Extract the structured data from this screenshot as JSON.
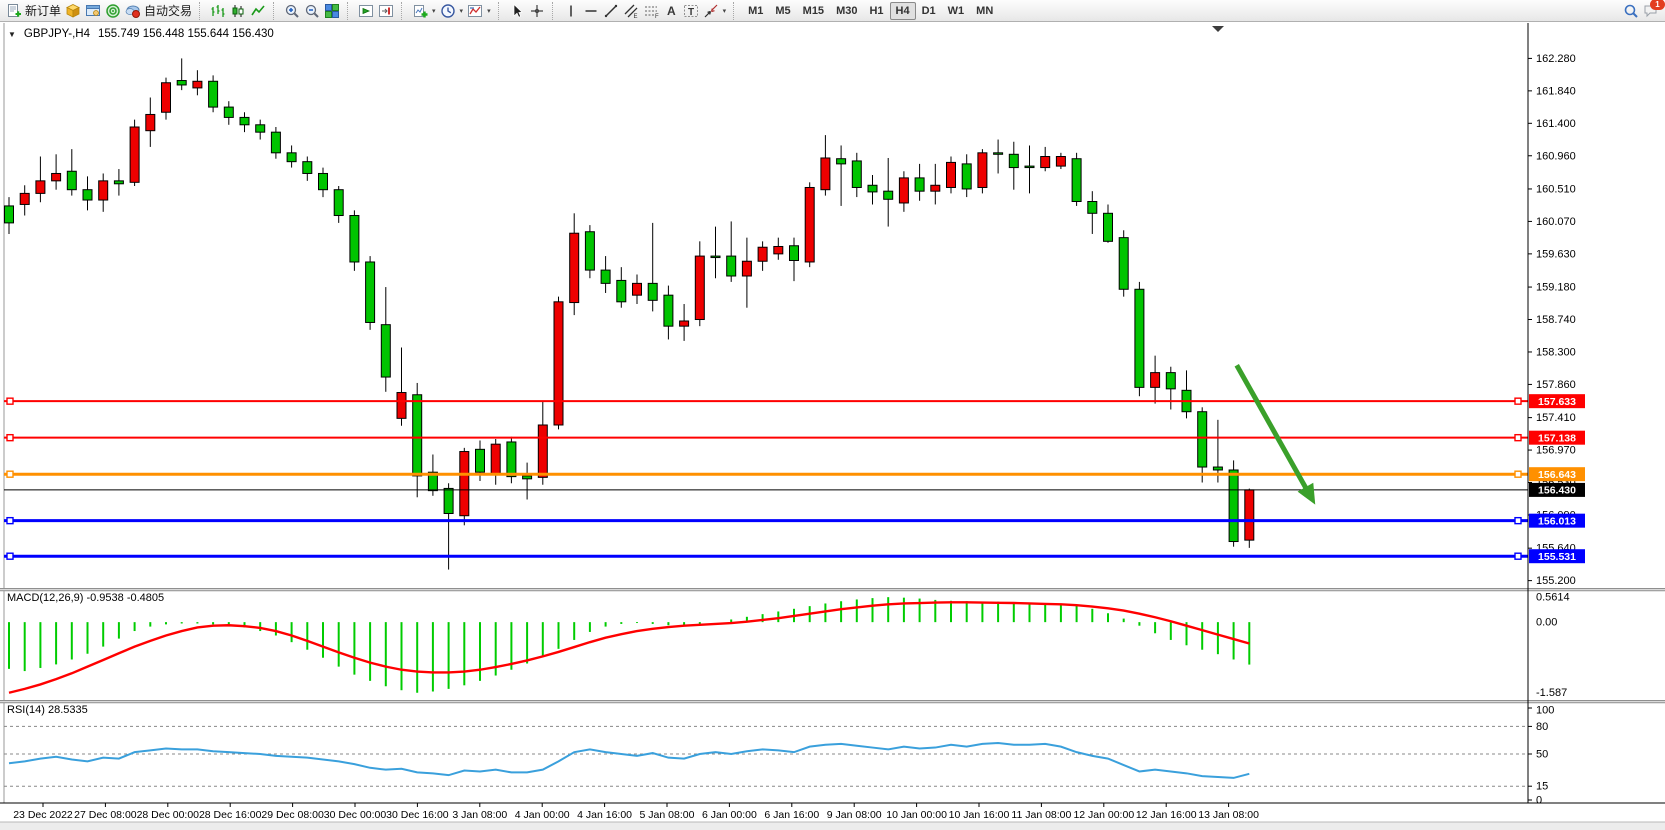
{
  "toolbar": {
    "groups": [
      {
        "name": "trade",
        "buttons": [
          {
            "icon": "new-order-icon",
            "label": "新订单"
          },
          {
            "icon": "cube-icon"
          },
          {
            "icon": "market-watch-icon"
          },
          {
            "icon": "navigator-icon"
          },
          {
            "icon": "autotrading-icon",
            "label": "自动交易"
          }
        ]
      },
      {
        "name": "chart-type",
        "buttons": [
          {
            "icon": "bar-chart-icon"
          },
          {
            "icon": "candlestick-icon"
          },
          {
            "icon": "line-chart-icon"
          }
        ]
      },
      {
        "name": "zoom",
        "buttons": [
          {
            "icon": "zoom-in-icon"
          },
          {
            "icon": "zoom-out-icon"
          },
          {
            "icon": "tile-windows-icon"
          }
        ]
      },
      {
        "name": "arrange",
        "buttons": [
          {
            "icon": "arrange-charts-icon"
          },
          {
            "icon": "arrange-shift-icon"
          }
        ]
      },
      {
        "name": "objects",
        "buttons": [
          {
            "icon": "add-indicator-icon",
            "dropdown": true
          },
          {
            "icon": "period-clock-icon",
            "dropdown": true
          },
          {
            "icon": "template-icon",
            "dropdown": true
          }
        ]
      },
      {
        "name": "pointer",
        "buttons": [
          {
            "icon": "cursor-icon"
          },
          {
            "icon": "crosshair-icon"
          }
        ]
      },
      {
        "name": "draw",
        "buttons": [
          {
            "icon": "vertical-line-icon"
          },
          {
            "icon": "horizontal-line-icon"
          },
          {
            "icon": "trendline-icon"
          },
          {
            "icon": "channel-icon"
          },
          {
            "icon": "fibonacci-icon"
          },
          {
            "icon": "text-icon"
          },
          {
            "icon": "text-label-icon"
          },
          {
            "icon": "arrows-icon",
            "dropdown": true
          }
        ]
      }
    ],
    "timeframes": [
      "M1",
      "M5",
      "M15",
      "M30",
      "H1",
      "H4",
      "D1",
      "W1",
      "MN"
    ],
    "active_timeframe": "H4",
    "chat_badge": "1"
  },
  "chart": {
    "symbol_period": "GBPJPY-,H4",
    "ohlc_text": "155.749 156.448 155.644 156.430",
    "macd_label": "MACD(12,26,9) -0.9538 -0.4805",
    "rsi_label": "RSI(14) 28.5335"
  },
  "chart_data": {
    "type": "candlestick",
    "symbol": "GBPJPY-",
    "period": "H4",
    "current_bar": {
      "open": 155.749,
      "high": 156.448,
      "low": 155.644,
      "close": 156.43
    },
    "colors": {
      "up_candle": "#ee0000",
      "down_candle": "#00c400",
      "candle_border": "#000000",
      "macd_histogram": "#00cc00",
      "macd_signal": "#ff0000",
      "rsi_line": "#3aa0dc",
      "arrow": "#3aa02a"
    },
    "price_axis": {
      "ymax": 162.76,
      "ymin": 155.1,
      "ticks": [
        162.28,
        161.84,
        161.4,
        160.96,
        160.51,
        160.07,
        159.63,
        159.18,
        158.74,
        158.3,
        157.86,
        157.41,
        156.97,
        156.53,
        156.09,
        155.64,
        155.2
      ]
    },
    "time_axis": {
      "labels": [
        "23 Dec 2022",
        "27 Dec 08:00",
        "28 Dec 00:00",
        "28 Dec 16:00",
        "29 Dec 08:00",
        "30 Dec 00:00",
        "30 Dec 16:00",
        "3 Jan 08:00",
        "4 Jan 00:00",
        "4 Jan 16:00",
        "5 Jan 08:00",
        "6 Jan 00:00",
        "6 Jan 16:00",
        "9 Jan 08:00",
        "10 Jan 00:00",
        "10 Jan 16:00",
        "11 Jan 08:00",
        "12 Jan 00:00",
        "12 Jan 16:00",
        "13 Jan 08:00"
      ]
    },
    "candles": [
      [
        160.28,
        160.4,
        159.9,
        160.05
      ],
      [
        160.3,
        160.56,
        160.15,
        160.45
      ],
      [
        160.45,
        160.95,
        160.33,
        160.62
      ],
      [
        160.62,
        160.98,
        160.5,
        160.72
      ],
      [
        160.75,
        161.05,
        160.42,
        160.5
      ],
      [
        160.5,
        160.68,
        160.22,
        160.36
      ],
      [
        160.36,
        160.72,
        160.2,
        160.62
      ],
      [
        160.62,
        160.78,
        160.42,
        160.58
      ],
      [
        160.6,
        161.45,
        160.55,
        161.35
      ],
      [
        161.3,
        161.75,
        161.08,
        161.52
      ],
      [
        161.55,
        162.02,
        161.45,
        161.95
      ],
      [
        161.98,
        162.28,
        161.85,
        161.92
      ],
      [
        161.88,
        162.12,
        161.78,
        161.97
      ],
      [
        161.97,
        162.05,
        161.55,
        161.62
      ],
      [
        161.62,
        161.7,
        161.38,
        161.48
      ],
      [
        161.48,
        161.55,
        161.28,
        161.38
      ],
      [
        161.38,
        161.45,
        161.18,
        161.28
      ],
      [
        161.28,
        161.35,
        160.92,
        161.0
      ],
      [
        161.0,
        161.1,
        160.8,
        160.88
      ],
      [
        160.88,
        160.95,
        160.62,
        160.72
      ],
      [
        160.72,
        160.8,
        160.4,
        160.5
      ],
      [
        160.5,
        160.55,
        160.05,
        160.15
      ],
      [
        160.15,
        160.22,
        159.4,
        159.52
      ],
      [
        159.52,
        159.6,
        158.6,
        158.7
      ],
      [
        158.67,
        159.18,
        157.76,
        157.96
      ],
      [
        157.4,
        158.36,
        157.3,
        157.75
      ],
      [
        157.72,
        157.88,
        156.33,
        156.62
      ],
      [
        156.67,
        156.91,
        156.35,
        156.42
      ],
      [
        156.45,
        156.52,
        155.35,
        156.11
      ],
      [
        156.08,
        157.0,
        155.95,
        156.95
      ],
      [
        156.98,
        157.1,
        156.55,
        156.67
      ],
      [
        156.64,
        157.12,
        156.5,
        157.05
      ],
      [
        157.08,
        157.15,
        156.52,
        156.61
      ],
      [
        156.62,
        156.8,
        156.3,
        156.58
      ],
      [
        156.6,
        157.63,
        156.5,
        157.31
      ],
      [
        157.31,
        159.05,
        157.25,
        158.98
      ],
      [
        158.97,
        160.18,
        158.8,
        159.91
      ],
      [
        159.93,
        160.02,
        159.3,
        159.41
      ],
      [
        159.41,
        159.6,
        159.1,
        159.23
      ],
      [
        159.27,
        159.45,
        158.9,
        158.98
      ],
      [
        159.07,
        159.35,
        158.95,
        159.23
      ],
      [
        159.23,
        160.05,
        158.85,
        159.0
      ],
      [
        159.07,
        159.2,
        158.47,
        158.65
      ],
      [
        158.65,
        158.95,
        158.45,
        158.72
      ],
      [
        158.74,
        159.8,
        158.65,
        159.6
      ],
      [
        159.6,
        160.0,
        159.3,
        159.58
      ],
      [
        159.6,
        160.07,
        159.25,
        159.33
      ],
      [
        159.33,
        159.85,
        158.9,
        159.53
      ],
      [
        159.53,
        159.8,
        159.4,
        159.72
      ],
      [
        159.63,
        159.85,
        159.55,
        159.73
      ],
      [
        159.74,
        159.85,
        159.26,
        159.54
      ],
      [
        159.52,
        160.6,
        159.45,
        160.53
      ],
      [
        160.5,
        161.24,
        160.42,
        160.93
      ],
      [
        160.92,
        161.1,
        160.28,
        160.85
      ],
      [
        160.89,
        161.0,
        160.4,
        160.53
      ],
      [
        160.56,
        160.7,
        160.3,
        160.47
      ],
      [
        160.48,
        160.93,
        160.0,
        160.37
      ],
      [
        160.32,
        160.75,
        160.2,
        160.66
      ],
      [
        160.66,
        160.85,
        160.35,
        160.48
      ],
      [
        160.48,
        160.85,
        160.3,
        160.56
      ],
      [
        160.53,
        160.95,
        160.45,
        160.87
      ],
      [
        160.85,
        160.98,
        160.4,
        160.51
      ],
      [
        160.53,
        161.05,
        160.45,
        161.0
      ],
      [
        161.0,
        161.18,
        160.72,
        160.98
      ],
      [
        160.98,
        161.15,
        160.5,
        160.8
      ],
      [
        160.82,
        161.1,
        160.45,
        160.8
      ],
      [
        160.8,
        161.08,
        160.75,
        160.95
      ],
      [
        160.82,
        161.0,
        160.78,
        160.95
      ],
      [
        160.92,
        161.0,
        160.28,
        160.34
      ],
      [
        160.34,
        160.48,
        159.9,
        160.18
      ],
      [
        160.18,
        160.3,
        159.78,
        159.8
      ],
      [
        159.85,
        159.95,
        159.05,
        159.15
      ],
      [
        159.15,
        159.25,
        157.7,
        157.82
      ],
      [
        157.82,
        158.25,
        157.6,
        158.02
      ],
      [
        158.02,
        158.1,
        157.52,
        157.8
      ],
      [
        157.78,
        158.05,
        157.4,
        157.49
      ],
      [
        157.49,
        157.55,
        156.53,
        156.74
      ],
      [
        156.74,
        157.38,
        156.53,
        156.7
      ],
      [
        156.7,
        156.83,
        155.66,
        155.73
      ],
      [
        155.749,
        156.448,
        155.644,
        156.43
      ]
    ],
    "hlines": [
      {
        "price": 157.633,
        "color": "#ff0000",
        "width": 2,
        "markers": true
      },
      {
        "price": 157.138,
        "color": "#ff0000",
        "width": 2,
        "markers": true
      },
      {
        "price": 156.643,
        "color": "#ff9000",
        "width": 3,
        "markers": true
      },
      {
        "price": 156.43,
        "color": "#000000",
        "width": 1,
        "markers": false
      },
      {
        "price": 156.013,
        "color": "#0000ff",
        "width": 3,
        "markers": true
      },
      {
        "price": 155.531,
        "color": "#0000ff",
        "width": 3,
        "markers": true
      }
    ],
    "arrow": {
      "bar1": 78.2,
      "price1": 158.12,
      "bar2": 83.2,
      "price2": 156.23
    },
    "macd": {
      "params": "12,26,9",
      "last_main": -0.9538,
      "last_signal": -0.4805,
      "ymax": 0.7,
      "ymin": -1.75,
      "scale_labels": [
        {
          "value": 0.5614,
          "text": "0.5614"
        },
        {
          "value": 0,
          "text": "0.00"
        },
        {
          "value": -1.587,
          "text": "-1.587"
        }
      ],
      "histogram": [
        -1.05,
        -1.1,
        -1.03,
        -0.95,
        -0.84,
        -0.71,
        -0.55,
        -0.37,
        -0.2,
        -0.1,
        -0.05,
        -0.03,
        -0.03,
        -0.05,
        -0.08,
        -0.12,
        -0.2,
        -0.3,
        -0.45,
        -0.62,
        -0.8,
        -1.0,
        -1.18,
        -1.32,
        -1.44,
        -1.53,
        -1.587,
        -1.56,
        -1.5,
        -1.42,
        -1.32,
        -1.2,
        -1.07,
        -0.93,
        -0.78,
        -0.6,
        -0.4,
        -0.22,
        -0.1,
        -0.04,
        -0.02,
        -0.04,
        -0.07,
        -0.09,
        -0.06,
        0.0,
        0.06,
        0.12,
        0.18,
        0.24,
        0.3,
        0.36,
        0.42,
        0.47,
        0.51,
        0.54,
        0.5614,
        0.55,
        0.53,
        0.5,
        0.48,
        0.47,
        0.46,
        0.46,
        0.45,
        0.44,
        0.43,
        0.41,
        0.37,
        0.3,
        0.2,
        0.08,
        -0.08,
        -0.25,
        -0.4,
        -0.52,
        -0.62,
        -0.72,
        -0.84,
        -0.9538
      ],
      "signal": [
        -1.587,
        -1.5,
        -1.4,
        -1.28,
        -1.15,
        -1.0,
        -0.85,
        -0.7,
        -0.55,
        -0.42,
        -0.3,
        -0.2,
        -0.12,
        -0.08,
        -0.07,
        -0.09,
        -0.13,
        -0.2,
        -0.3,
        -0.42,
        -0.55,
        -0.68,
        -0.8,
        -0.91,
        -1.0,
        -1.07,
        -1.11,
        -1.13,
        -1.13,
        -1.11,
        -1.07,
        -1.01,
        -0.94,
        -0.86,
        -0.77,
        -0.67,
        -0.56,
        -0.45,
        -0.35,
        -0.27,
        -0.2,
        -0.15,
        -0.11,
        -0.08,
        -0.06,
        -0.04,
        -0.02,
        0.01,
        0.05,
        0.09,
        0.14,
        0.19,
        0.24,
        0.29,
        0.33,
        0.37,
        0.4,
        0.42,
        0.43,
        0.44,
        0.445,
        0.445,
        0.44,
        0.435,
        0.43,
        0.42,
        0.41,
        0.4,
        0.38,
        0.35,
        0.31,
        0.26,
        0.19,
        0.11,
        0.02,
        -0.08,
        -0.18,
        -0.28,
        -0.38,
        -0.4805
      ]
    },
    "rsi": {
      "params": "14",
      "last_value": 28.5335,
      "levels": [
        80,
        50,
        15
      ],
      "scale_labels": [
        {
          "value": 100,
          "text": "100"
        },
        {
          "value": 80,
          "text": "80"
        },
        {
          "value": 50,
          "text": "50"
        },
        {
          "value": 15,
          "text": "15"
        },
        {
          "value": 0,
          "text": "0"
        }
      ],
      "values": [
        40,
        42,
        45,
        47,
        44,
        42,
        46,
        45,
        52,
        54,
        56,
        55,
        55,
        53,
        52,
        51,
        50,
        48,
        47,
        46,
        44,
        42,
        39,
        35,
        33,
        34,
        30,
        29,
        27,
        32,
        31,
        33,
        30,
        30,
        33,
        42,
        52,
        55,
        52,
        50,
        48,
        51,
        46,
        45,
        50,
        52,
        50,
        53,
        55,
        54,
        52,
        58,
        60,
        61,
        59,
        57,
        55,
        58,
        56,
        57,
        60,
        58,
        61,
        62,
        60,
        60,
        61,
        58,
        52,
        48,
        45,
        38,
        31,
        33,
        31,
        29,
        26,
        25,
        24,
        28.5
      ]
    }
  }
}
